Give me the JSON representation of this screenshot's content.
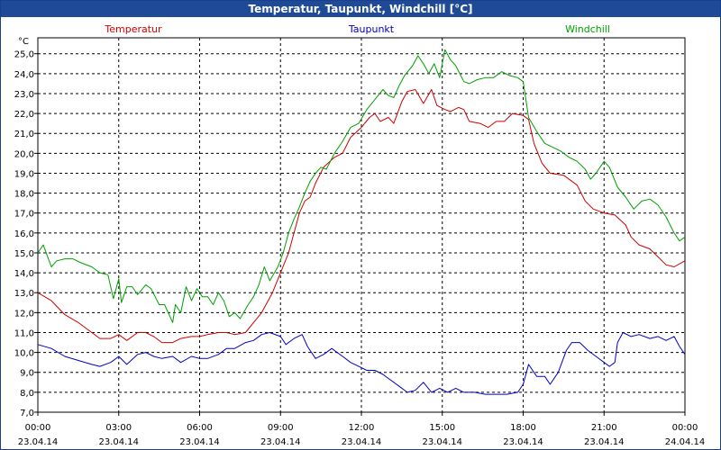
{
  "header": {
    "title": "Temperatur, Taupunkt, Windchill [°C]"
  },
  "colors": {
    "title_bar": "#1f4b96",
    "temperature": "#d00000",
    "dewpoint": "#0000c8",
    "windchill": "#00a000",
    "grid": "#000000"
  },
  "chart_data": {
    "type": "line",
    "title": "Temperatur, Taupunkt, Windchill [°C]",
    "ylabel": "°C",
    "ylim": [
      7.0,
      25.8
    ],
    "grid": true,
    "legend_placement": "top",
    "y_ticks": [
      "7,0",
      "8,0",
      "9,0",
      "10,0",
      "11,0",
      "12,0",
      "13,0",
      "14,0",
      "15,0",
      "16,0",
      "17,0",
      "18,0",
      "19,0",
      "20,0",
      "21,0",
      "22,0",
      "23,0",
      "24,0",
      "25,0"
    ],
    "x_ticks": [
      {
        "time": "00:00",
        "date": "23.04.14"
      },
      {
        "time": "03:00",
        "date": "23.04.14"
      },
      {
        "time": "06:00",
        "date": "23.04.14"
      },
      {
        "time": "09:00",
        "date": "23.04.14"
      },
      {
        "time": "12:00",
        "date": "23.04.14"
      },
      {
        "time": "15:00",
        "date": "23.04.14"
      },
      {
        "time": "18:00",
        "date": "23.04.14"
      },
      {
        "time": "21:00",
        "date": "23.04.14"
      },
      {
        "time": "00:00",
        "date": "24.04.14"
      }
    ],
    "x_unit": "hours since 23.04.14 00:00",
    "series": [
      {
        "name": "Temperatur",
        "color": "#d00000",
        "points": [
          [
            0,
            13.0
          ],
          [
            0.5,
            12.6
          ],
          [
            1.0,
            11.9
          ],
          [
            1.5,
            11.5
          ],
          [
            2.0,
            11.0
          ],
          [
            2.3,
            10.7
          ],
          [
            2.7,
            10.7
          ],
          [
            3.0,
            10.9
          ],
          [
            3.3,
            10.6
          ],
          [
            3.7,
            11.0
          ],
          [
            4.0,
            11.0
          ],
          [
            4.3,
            10.8
          ],
          [
            4.6,
            10.5
          ],
          [
            5.0,
            10.5
          ],
          [
            5.3,
            10.7
          ],
          [
            5.7,
            10.8
          ],
          [
            6.0,
            10.8
          ],
          [
            6.3,
            10.9
          ],
          [
            6.7,
            11.0
          ],
          [
            7.0,
            11.0
          ],
          [
            7.3,
            10.9
          ],
          [
            7.7,
            11.0
          ],
          [
            8.0,
            11.5
          ],
          [
            8.3,
            12.0
          ],
          [
            8.7,
            13.0
          ],
          [
            9.0,
            14.0
          ],
          [
            9.3,
            15.0
          ],
          [
            9.5,
            16.0
          ],
          [
            9.7,
            17.0
          ],
          [
            9.9,
            17.6
          ],
          [
            10.1,
            17.8
          ],
          [
            10.3,
            18.5
          ],
          [
            10.6,
            19.3
          ],
          [
            11.0,
            19.8
          ],
          [
            11.3,
            20.0
          ],
          [
            11.6,
            20.8
          ],
          [
            12.0,
            21.3
          ],
          [
            12.3,
            21.8
          ],
          [
            12.5,
            22.0
          ],
          [
            12.7,
            21.6
          ],
          [
            13.0,
            21.8
          ],
          [
            13.2,
            21.5
          ],
          [
            13.5,
            22.6
          ],
          [
            13.7,
            23.1
          ],
          [
            14.0,
            23.2
          ],
          [
            14.3,
            22.5
          ],
          [
            14.6,
            23.2
          ],
          [
            14.8,
            22.4
          ],
          [
            15.1,
            22.2
          ],
          [
            15.3,
            22.1
          ],
          [
            15.6,
            22.3
          ],
          [
            15.8,
            22.2
          ],
          [
            16.0,
            21.6
          ],
          [
            16.4,
            21.5
          ],
          [
            16.7,
            21.3
          ],
          [
            17.0,
            21.6
          ],
          [
            17.3,
            21.6
          ],
          [
            17.6,
            22.0
          ],
          [
            18.0,
            21.9
          ],
          [
            18.2,
            21.7
          ],
          [
            18.4,
            20.5
          ],
          [
            18.7,
            19.5
          ],
          [
            19.0,
            19.0
          ],
          [
            19.5,
            18.9
          ],
          [
            19.8,
            18.6
          ],
          [
            20.0,
            18.4
          ],
          [
            20.3,
            17.6
          ],
          [
            20.6,
            17.2
          ],
          [
            21.0,
            17.0
          ],
          [
            21.4,
            16.9
          ],
          [
            21.8,
            16.4
          ],
          [
            22.0,
            15.8
          ],
          [
            22.3,
            15.4
          ],
          [
            22.7,
            15.2
          ],
          [
            23.0,
            14.8
          ],
          [
            23.3,
            14.4
          ],
          [
            23.6,
            14.3
          ],
          [
            24.0,
            14.6
          ]
        ]
      },
      {
        "name": "Taupunkt",
        "color": "#0000c8",
        "points": [
          [
            0,
            10.4
          ],
          [
            0.5,
            10.2
          ],
          [
            1.0,
            9.8
          ],
          [
            1.5,
            9.6
          ],
          [
            2.0,
            9.4
          ],
          [
            2.3,
            9.3
          ],
          [
            2.7,
            9.5
          ],
          [
            3.0,
            9.8
          ],
          [
            3.3,
            9.4
          ],
          [
            3.7,
            9.9
          ],
          [
            4.0,
            10.0
          ],
          [
            4.3,
            9.8
          ],
          [
            4.6,
            9.7
          ],
          [
            5.0,
            9.8
          ],
          [
            5.3,
            9.5
          ],
          [
            5.7,
            9.8
          ],
          [
            6.0,
            9.7
          ],
          [
            6.3,
            9.7
          ],
          [
            6.7,
            9.9
          ],
          [
            7.0,
            10.2
          ],
          [
            7.3,
            10.2
          ],
          [
            7.7,
            10.5
          ],
          [
            8.0,
            10.6
          ],
          [
            8.3,
            10.9
          ],
          [
            8.6,
            11.0
          ],
          [
            9.0,
            10.8
          ],
          [
            9.2,
            10.4
          ],
          [
            9.5,
            10.7
          ],
          [
            9.8,
            10.9
          ],
          [
            10.0,
            10.3
          ],
          [
            10.3,
            9.7
          ],
          [
            10.6,
            9.9
          ],
          [
            10.9,
            10.2
          ],
          [
            11.3,
            9.8
          ],
          [
            11.6,
            9.5
          ],
          [
            11.9,
            9.3
          ],
          [
            12.2,
            9.1
          ],
          [
            12.5,
            9.1
          ],
          [
            12.8,
            8.9
          ],
          [
            13.1,
            8.6
          ],
          [
            13.4,
            8.3
          ],
          [
            13.7,
            8.0
          ],
          [
            14.0,
            8.1
          ],
          [
            14.3,
            8.5
          ],
          [
            14.6,
            8.0
          ],
          [
            14.9,
            8.2
          ],
          [
            15.2,
            8.0
          ],
          [
            15.5,
            8.2
          ],
          [
            15.8,
            8.0
          ],
          [
            16.2,
            8.0
          ],
          [
            16.6,
            7.9
          ],
          [
            17.0,
            7.9
          ],
          [
            17.4,
            7.9
          ],
          [
            17.8,
            8.0
          ],
          [
            18.0,
            8.4
          ],
          [
            18.2,
            9.4
          ],
          [
            18.5,
            8.8
          ],
          [
            18.8,
            8.8
          ],
          [
            19.0,
            8.4
          ],
          [
            19.3,
            9.0
          ],
          [
            19.6,
            10.1
          ],
          [
            19.8,
            10.5
          ],
          [
            20.1,
            10.5
          ],
          [
            20.4,
            10.1
          ],
          [
            20.7,
            9.8
          ],
          [
            21.0,
            9.5
          ],
          [
            21.2,
            9.3
          ],
          [
            21.4,
            9.5
          ],
          [
            21.5,
            10.5
          ],
          [
            21.7,
            11.0
          ],
          [
            22.0,
            10.8
          ],
          [
            22.3,
            10.9
          ],
          [
            22.7,
            10.7
          ],
          [
            23.0,
            10.8
          ],
          [
            23.3,
            10.6
          ],
          [
            23.6,
            10.8
          ],
          [
            23.8,
            10.3
          ],
          [
            24.0,
            9.9
          ]
        ]
      },
      {
        "name": "Windchill",
        "color": "#00a000",
        "points": [
          [
            0,
            15.0
          ],
          [
            0.2,
            15.4
          ],
          [
            0.5,
            14.3
          ],
          [
            0.7,
            14.6
          ],
          [
            1.0,
            14.7
          ],
          [
            1.3,
            14.7
          ],
          [
            1.6,
            14.5
          ],
          [
            2.0,
            14.3
          ],
          [
            2.3,
            14.0
          ],
          [
            2.6,
            13.9
          ],
          [
            2.8,
            12.7
          ],
          [
            3.0,
            13.7
          ],
          [
            3.1,
            12.5
          ],
          [
            3.3,
            13.3
          ],
          [
            3.5,
            13.3
          ],
          [
            3.7,
            12.9
          ],
          [
            4.0,
            13.4
          ],
          [
            4.2,
            13.2
          ],
          [
            4.5,
            12.4
          ],
          [
            4.7,
            12.4
          ],
          [
            5.0,
            11.5
          ],
          [
            5.1,
            12.4
          ],
          [
            5.3,
            12.0
          ],
          [
            5.5,
            13.3
          ],
          [
            5.7,
            12.6
          ],
          [
            5.9,
            13.2
          ],
          [
            6.1,
            12.8
          ],
          [
            6.3,
            12.8
          ],
          [
            6.5,
            12.4
          ],
          [
            6.7,
            13.0
          ],
          [
            6.9,
            12.6
          ],
          [
            7.1,
            11.8
          ],
          [
            7.3,
            12.0
          ],
          [
            7.5,
            11.7
          ],
          [
            7.8,
            12.4
          ],
          [
            8.0,
            12.8
          ],
          [
            8.2,
            13.4
          ],
          [
            8.4,
            14.3
          ],
          [
            8.6,
            13.6
          ],
          [
            8.9,
            14.3
          ],
          [
            9.1,
            15.0
          ],
          [
            9.3,
            16.0
          ],
          [
            9.5,
            16.7
          ],
          [
            9.7,
            17.3
          ],
          [
            9.9,
            18.0
          ],
          [
            10.1,
            18.6
          ],
          [
            10.3,
            19.0
          ],
          [
            10.5,
            19.3
          ],
          [
            10.7,
            19.2
          ],
          [
            11.0,
            20.0
          ],
          [
            11.3,
            20.6
          ],
          [
            11.6,
            21.3
          ],
          [
            11.9,
            21.5
          ],
          [
            12.2,
            22.2
          ],
          [
            12.5,
            22.7
          ],
          [
            12.8,
            23.2
          ],
          [
            13.0,
            22.9
          ],
          [
            13.2,
            22.8
          ],
          [
            13.4,
            23.4
          ],
          [
            13.6,
            23.9
          ],
          [
            13.9,
            24.4
          ],
          [
            14.1,
            24.9
          ],
          [
            14.3,
            24.5
          ],
          [
            14.5,
            24.0
          ],
          [
            14.7,
            24.5
          ],
          [
            14.9,
            23.8
          ],
          [
            15.1,
            25.2
          ],
          [
            15.3,
            24.7
          ],
          [
            15.5,
            24.4
          ],
          [
            15.8,
            23.6
          ],
          [
            16.0,
            23.5
          ],
          [
            16.3,
            23.7
          ],
          [
            16.6,
            23.8
          ],
          [
            16.9,
            23.8
          ],
          [
            17.2,
            24.1
          ],
          [
            17.5,
            23.9
          ],
          [
            17.8,
            23.8
          ],
          [
            18.0,
            23.6
          ],
          [
            18.2,
            21.8
          ],
          [
            18.5,
            21.1
          ],
          [
            18.8,
            20.5
          ],
          [
            19.1,
            20.3
          ],
          [
            19.4,
            20.1
          ],
          [
            19.7,
            19.8
          ],
          [
            20.0,
            19.6
          ],
          [
            20.3,
            19.2
          ],
          [
            20.5,
            18.7
          ],
          [
            20.7,
            19.0
          ],
          [
            21.0,
            19.6
          ],
          [
            21.2,
            19.3
          ],
          [
            21.5,
            18.3
          ],
          [
            21.8,
            17.8
          ],
          [
            22.1,
            17.2
          ],
          [
            22.4,
            17.6
          ],
          [
            22.7,
            17.7
          ],
          [
            23.0,
            17.4
          ],
          [
            23.3,
            16.8
          ],
          [
            23.6,
            16.0
          ],
          [
            23.8,
            15.6
          ],
          [
            24.0,
            15.8
          ]
        ]
      }
    ]
  }
}
